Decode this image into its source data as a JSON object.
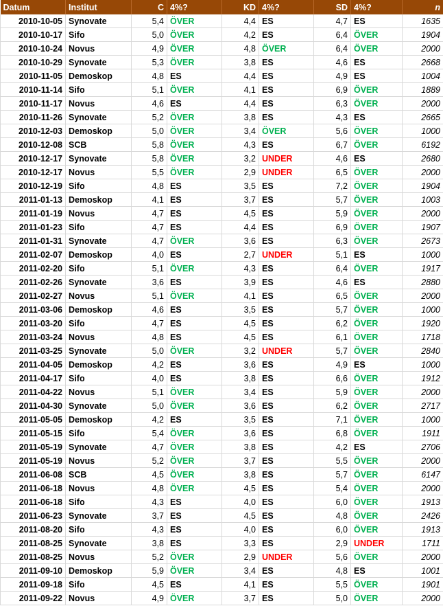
{
  "colors": {
    "header_bg": "#974806",
    "over": "#00b050",
    "under": "#ff0000"
  },
  "headers": [
    "Datum",
    "Institut",
    "C",
    "4%?",
    "KD",
    "4%?",
    "SD",
    "4%?",
    "n"
  ],
  "rows": [
    [
      "2010-10-05",
      "Synovate",
      "5,4",
      "ÖVER",
      "4,4",
      "ES",
      "4,7",
      "ES",
      "1635"
    ],
    [
      "2010-10-17",
      "Sifo",
      "5,0",
      "ÖVER",
      "4,2",
      "ES",
      "6,4",
      "ÖVER",
      "1904"
    ],
    [
      "2010-10-24",
      "Novus",
      "4,9",
      "ÖVER",
      "4,8",
      "ÖVER",
      "6,4",
      "ÖVER",
      "2000"
    ],
    [
      "2010-10-29",
      "Synovate",
      "5,3",
      "ÖVER",
      "3,8",
      "ES",
      "4,6",
      "ES",
      "2668"
    ],
    [
      "2010-11-05",
      "Demoskop",
      "4,8",
      "ES",
      "4,4",
      "ES",
      "4,9",
      "ES",
      "1004"
    ],
    [
      "2010-11-14",
      "Sifo",
      "5,1",
      "ÖVER",
      "4,1",
      "ES",
      "6,9",
      "ÖVER",
      "1889"
    ],
    [
      "2010-11-17",
      "Novus",
      "4,6",
      "ES",
      "4,4",
      "ES",
      "6,3",
      "ÖVER",
      "2000"
    ],
    [
      "2010-11-26",
      "Synovate",
      "5,2",
      "ÖVER",
      "3,8",
      "ES",
      "4,3",
      "ES",
      "2665"
    ],
    [
      "2010-12-03",
      "Demoskop",
      "5,0",
      "ÖVER",
      "3,4",
      "ÖVER",
      "5,6",
      "ÖVER",
      "1000"
    ],
    [
      "2010-12-08",
      "SCB",
      "5,8",
      "ÖVER",
      "4,3",
      "ES",
      "6,7",
      "ÖVER",
      "6192"
    ],
    [
      "2010-12-17",
      "Synovate",
      "5,8",
      "ÖVER",
      "3,2",
      "UNDER",
      "4,6",
      "ES",
      "2680"
    ],
    [
      "2010-12-17",
      "Novus",
      "5,5",
      "ÖVER",
      "2,9",
      "UNDER",
      "6,5",
      "ÖVER",
      "2000"
    ],
    [
      "2010-12-19",
      "Sifo",
      "4,8",
      "ES",
      "3,5",
      "ES",
      "7,2",
      "ÖVER",
      "1904"
    ],
    [
      "2011-01-13",
      "Demoskop",
      "4,1",
      "ES",
      "3,7",
      "ES",
      "5,7",
      "ÖVER",
      "1003"
    ],
    [
      "2011-01-19",
      "Novus",
      "4,7",
      "ES",
      "4,5",
      "ES",
      "5,9",
      "ÖVER",
      "2000"
    ],
    [
      "2011-01-23",
      "Sifo",
      "4,7",
      "ES",
      "4,4",
      "ES",
      "6,9",
      "ÖVER",
      "1907"
    ],
    [
      "2011-01-31",
      "Synovate",
      "4,7",
      "ÖVER",
      "3,6",
      "ES",
      "6,3",
      "ÖVER",
      "2673"
    ],
    [
      "2011-02-07",
      "Demoskop",
      "4,0",
      "ES",
      "2,7",
      "UNDER",
      "5,1",
      "ES",
      "1000"
    ],
    [
      "2011-02-20",
      "Sifo",
      "5,1",
      "ÖVER",
      "4,3",
      "ES",
      "6,4",
      "ÖVER",
      "1917"
    ],
    [
      "2011-02-26",
      "Synovate",
      "3,6",
      "ES",
      "3,9",
      "ES",
      "4,6",
      "ES",
      "2880"
    ],
    [
      "2011-02-27",
      "Novus",
      "5,1",
      "ÖVER",
      "4,1",
      "ES",
      "6,5",
      "ÖVER",
      "2000"
    ],
    [
      "2011-03-06",
      "Demoskop",
      "4,6",
      "ES",
      "3,5",
      "ES",
      "5,7",
      "ÖVER",
      "1000"
    ],
    [
      "2011-03-20",
      "Sifo",
      "4,7",
      "ES",
      "4,5",
      "ES",
      "6,2",
      "ÖVER",
      "1920"
    ],
    [
      "2011-03-24",
      "Novus",
      "4,8",
      "ES",
      "4,5",
      "ES",
      "6,1",
      "ÖVER",
      "1718"
    ],
    [
      "2011-03-25",
      "Synovate",
      "5,0",
      "ÖVER",
      "3,2",
      "UNDER",
      "5,7",
      "ÖVER",
      "2840"
    ],
    [
      "2011-04-05",
      "Demoskop",
      "4,2",
      "ES",
      "3,6",
      "ES",
      "4,9",
      "ES",
      "1000"
    ],
    [
      "2011-04-17",
      "Sifo",
      "4,0",
      "ES",
      "3,8",
      "ES",
      "6,6",
      "ÖVER",
      "1912"
    ],
    [
      "2011-04-22",
      "Novus",
      "5,1",
      "ÖVER",
      "3,4",
      "ES",
      "5,9",
      "ÖVER",
      "2000"
    ],
    [
      "2011-04-30",
      "Synovate",
      "5,0",
      "ÖVER",
      "3,6",
      "ES",
      "6,2",
      "ÖVER",
      "2717"
    ],
    [
      "2011-05-05",
      "Demoskop",
      "4,2",
      "ES",
      "3,5",
      "ES",
      "7,1",
      "ÖVER",
      "1000"
    ],
    [
      "2011-05-15",
      "Sifo",
      "5,4",
      "ÖVER",
      "3,6",
      "ES",
      "6,8",
      "ÖVER",
      "1911"
    ],
    [
      "2011-05-19",
      "Synovate",
      "4,7",
      "ÖVER",
      "3,8",
      "ES",
      "4,2",
      "ES",
      "2706"
    ],
    [
      "2011-05-19",
      "Novus",
      "5,2",
      "ÖVER",
      "3,7",
      "ES",
      "5,5",
      "ÖVER",
      "2000"
    ],
    [
      "2011-06-08",
      "SCB",
      "4,5",
      "ÖVER",
      "3,8",
      "ES",
      "5,7",
      "ÖVER",
      "6147"
    ],
    [
      "2011-06-18",
      "Novus",
      "4,8",
      "ÖVER",
      "4,5",
      "ES",
      "5,4",
      "ÖVER",
      "2000"
    ],
    [
      "2011-06-18",
      "Sifo",
      "4,3",
      "ES",
      "4,0",
      "ES",
      "6,0",
      "ÖVER",
      "1913"
    ],
    [
      "2011-06-23",
      "Synovate",
      "3,7",
      "ES",
      "4,5",
      "ES",
      "4,8",
      "ÖVER",
      "2426"
    ],
    [
      "2011-08-20",
      "Sifo",
      "4,3",
      "ES",
      "4,0",
      "ES",
      "6,0",
      "ÖVER",
      "1913"
    ],
    [
      "2011-08-25",
      "Synovate",
      "3,8",
      "ES",
      "3,3",
      "ES",
      "2,9",
      "UNDER",
      "1711"
    ],
    [
      "2011-08-25",
      "Novus",
      "5,2",
      "ÖVER",
      "2,9",
      "UNDER",
      "5,6",
      "ÖVER",
      "2000"
    ],
    [
      "2011-09-10",
      "Demoskop",
      "5,9",
      "ÖVER",
      "3,4",
      "ES",
      "4,8",
      "ES",
      "1001"
    ],
    [
      "2011-09-18",
      "Sifo",
      "4,5",
      "ES",
      "4,1",
      "ES",
      "5,5",
      "ÖVER",
      "1901"
    ],
    [
      "2011-09-22",
      "Novus",
      "4,9",
      "ÖVER",
      "3,7",
      "ES",
      "5,0",
      "ÖVER",
      "2000"
    ]
  ]
}
